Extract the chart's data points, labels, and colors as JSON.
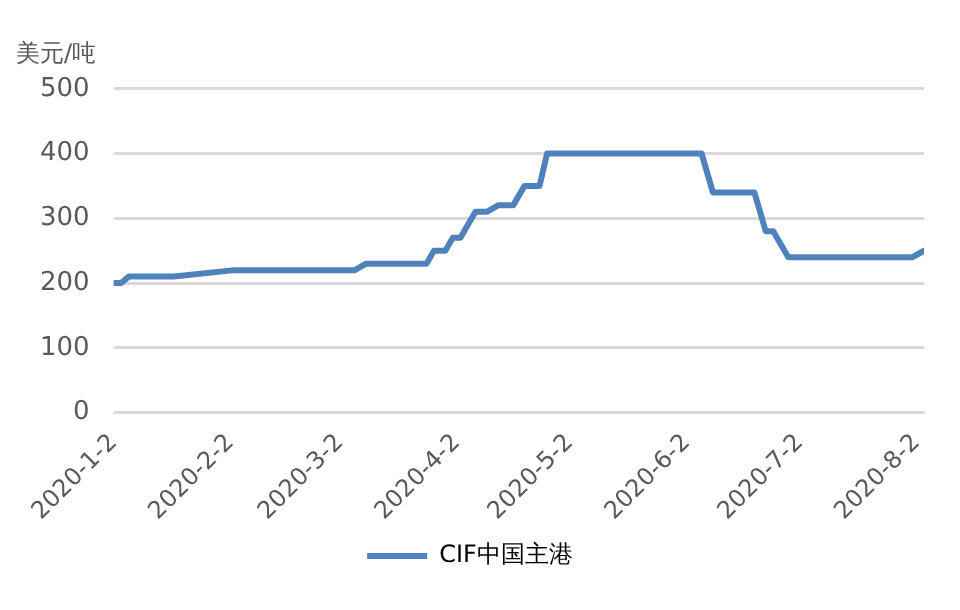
{
  "chart_data": {
    "type": "line",
    "ylabel": "美元/吨",
    "x": [
      "2020-01-02",
      "2020-01-04",
      "2020-01-06",
      "2020-01-18",
      "2020-02-03",
      "2020-03-06",
      "2020-03-09",
      "2020-03-25",
      "2020-03-27",
      "2020-03-30",
      "2020-04-01",
      "2020-04-03",
      "2020-04-07",
      "2020-04-10",
      "2020-04-13",
      "2020-04-17",
      "2020-04-20",
      "2020-04-24",
      "2020-04-26",
      "2020-06-06",
      "2020-06-09",
      "2020-06-20",
      "2020-06-23",
      "2020-06-25",
      "2020-06-29",
      "2020-08-01",
      "2020-08-04"
    ],
    "series": [
      {
        "name": "CIF中国主港",
        "color": "#4f81bd",
        "values": [
          200,
          200,
          210,
          210,
          220,
          220,
          230,
          230,
          250,
          250,
          270,
          270,
          310,
          310,
          320,
          320,
          350,
          350,
          400,
          400,
          340,
          340,
          280,
          280,
          240,
          240,
          250
        ]
      }
    ],
    "xlim": [
      "2020-01-02",
      "2020-08-04"
    ],
    "xticks": [
      {
        "value": "2020-01-02",
        "label": "2020-1-2"
      },
      {
        "value": "2020-02-02",
        "label": "2020-2-2"
      },
      {
        "value": "2020-03-02",
        "label": "2020-3-2"
      },
      {
        "value": "2020-04-02",
        "label": "2020-4-2"
      },
      {
        "value": "2020-05-02",
        "label": "2020-5-2"
      },
      {
        "value": "2020-06-02",
        "label": "2020-6-2"
      },
      {
        "value": "2020-07-02",
        "label": "2020-7-2"
      },
      {
        "value": "2020-08-02",
        "label": "2020-8-2"
      }
    ],
    "ylim": [
      0,
      500
    ],
    "yticks": [
      0,
      100,
      200,
      300,
      400,
      500
    ],
    "grid": "y",
    "legend": "bottom",
    "marker": "none",
    "line_style": "solid"
  }
}
